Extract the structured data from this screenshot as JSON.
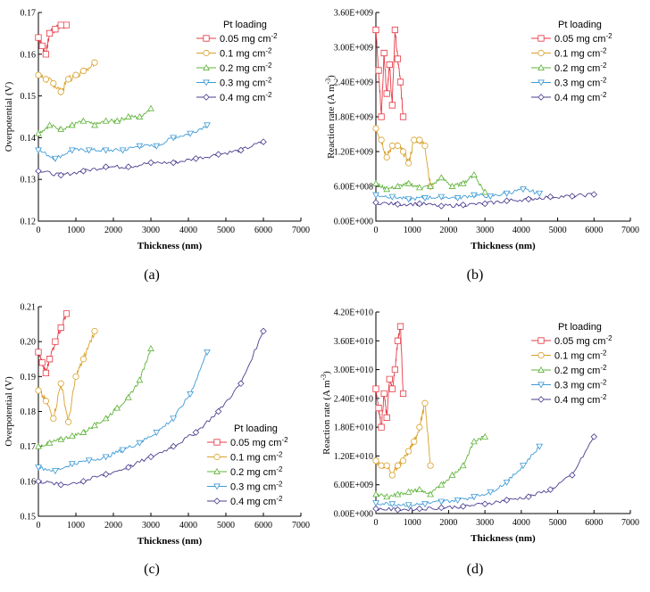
{
  "colors": [
    "#e83a45",
    "#d9a12a",
    "#5fb33a",
    "#3d9ad6",
    "#4a3d8f"
  ],
  "chart_data": [
    {
      "type": "line",
      "panel": "a",
      "caption": "(a)",
      "title": "",
      "xlabel": "Thickness (nm)",
      "ylabel": "Overpotential (V)",
      "xlim": [
        0,
        7000
      ],
      "ylim": [
        0.12,
        0.17
      ],
      "xticks": [
        "0",
        "1000",
        "2000",
        "3000",
        "4000",
        "5000",
        "6000",
        "7000"
      ],
      "yticks": [
        "0.12",
        "0.13",
        "0.14",
        "0.15",
        "0.16",
        "0.17"
      ],
      "legend_title": "Pt loading",
      "legend_position": "top-right",
      "series": [
        {
          "name": "0.05 mg cm",
          "sup": "-2",
          "marker": "square",
          "x": [
            0,
            100,
            200,
            300,
            450,
            600,
            750
          ],
          "y": [
            0.164,
            0.162,
            0.16,
            0.165,
            0.166,
            0.167,
            0.167
          ]
        },
        {
          "name": "0.1   mg cm",
          "sup": "-2",
          "marker": "circle",
          "x": [
            0,
            200,
            400,
            600,
            800,
            1000,
            1200,
            1500
          ],
          "y": [
            0.155,
            0.154,
            0.153,
            0.151,
            0.154,
            0.155,
            0.156,
            0.158
          ]
        },
        {
          "name": "0.2   mg cm",
          "sup": "-2",
          "marker": "triangle-up",
          "x": [
            0,
            300,
            600,
            900,
            1200,
            1500,
            1800,
            2100,
            2400,
            2700,
            3000
          ],
          "y": [
            0.141,
            0.143,
            0.142,
            0.143,
            0.144,
            0.143,
            0.144,
            0.144,
            0.145,
            0.145,
            0.147
          ]
        },
        {
          "name": "0.3   mg cm",
          "sup": "-2",
          "marker": "triangle-down",
          "x": [
            0,
            450,
            900,
            1350,
            1800,
            2250,
            2700,
            3150,
            3600,
            4050,
            4500
          ],
          "y": [
            0.137,
            0.135,
            0.137,
            0.137,
            0.137,
            0.137,
            0.138,
            0.138,
            0.14,
            0.141,
            0.143
          ]
        },
        {
          "name": "0.4   mg cm",
          "sup": "-2",
          "marker": "diamond",
          "x": [
            0,
            600,
            1200,
            1800,
            2400,
            3000,
            3600,
            4200,
            4800,
            5400,
            6000
          ],
          "y": [
            0.132,
            0.131,
            0.132,
            0.133,
            0.133,
            0.134,
            0.134,
            0.135,
            0.136,
            0.137,
            0.139
          ]
        }
      ]
    },
    {
      "type": "line",
      "panel": "b",
      "caption": "(b)",
      "title": "",
      "xlabel": "Thickness (nm)",
      "ylabel": "Reaction rate (A m",
      "ylabel_sup": "-3",
      "ylabel_tail": ")",
      "xlim": [
        0,
        7000
      ],
      "ylim": [
        0,
        3600000000.0
      ],
      "xticks": [
        "0",
        "1000",
        "2000",
        "3000",
        "4000",
        "5000",
        "6000",
        "7000"
      ],
      "yticks": [
        "0.00E+000",
        "6.00E+008",
        "1.20E+009",
        "1.80E+009",
        "2.40E+009",
        "3.00E+009",
        "3.60E+009"
      ],
      "legend_title": "Pt loading",
      "legend_position": "top-right",
      "series": [
        {
          "name": "0.05 mg cm",
          "sup": "-2",
          "marker": "square",
          "x": [
            0,
            75,
            150,
            225,
            300,
            375,
            450,
            525,
            600,
            675,
            750
          ],
          "y": [
            3300000000.0,
            2600000000.0,
            1800000000.0,
            2900000000.0,
            2200000000.0,
            2700000000.0,
            2000000000.0,
            3300000000.0,
            2800000000.0,
            2400000000.0,
            1800000000.0
          ]
        },
        {
          "name": "0.1   mg cm",
          "sup": "-2",
          "marker": "circle",
          "x": [
            0,
            150,
            300,
            450,
            600,
            750,
            900,
            1050,
            1200,
            1350,
            1500
          ],
          "y": [
            1600000000.0,
            1400000000.0,
            1100000000.0,
            1300000000.0,
            1300000000.0,
            1200000000.0,
            1000000000.0,
            1400000000.0,
            1400000000.0,
            1300000000.0,
            600000000.0
          ]
        },
        {
          "name": "0.2   mg cm",
          "sup": "-2",
          "marker": "triangle-up",
          "x": [
            0,
            300,
            600,
            900,
            1200,
            1500,
            1800,
            2100,
            2400,
            2700,
            3000
          ],
          "y": [
            650000000.0,
            550000000.0,
            600000000.0,
            650000000.0,
            580000000.0,
            600000000.0,
            750000000.0,
            600000000.0,
            650000000.0,
            800000000.0,
            500000000.0
          ]
        },
        {
          "name": "0.3   mg cm",
          "sup": "-2",
          "marker": "triangle-down",
          "x": [
            0,
            450,
            900,
            1350,
            1800,
            2250,
            2700,
            3150,
            3600,
            4050,
            4500
          ],
          "y": [
            450000000.0,
            420000000.0,
            380000000.0,
            400000000.0,
            420000000.0,
            400000000.0,
            450000000.0,
            430000000.0,
            480000000.0,
            550000000.0,
            480000000.0
          ]
        },
        {
          "name": "0.4   mg cm",
          "sup": "-2",
          "marker": "diamond",
          "x": [
            0,
            600,
            1200,
            1800,
            2400,
            3000,
            3600,
            4200,
            4800,
            5400,
            6000
          ],
          "y": [
            320000000.0,
            290000000.0,
            300000000.0,
            260000000.0,
            280000000.0,
            300000000.0,
            350000000.0,
            380000000.0,
            420000000.0,
            430000000.0,
            460000000.0
          ]
        }
      ]
    },
    {
      "type": "line",
      "panel": "c",
      "caption": "(c)",
      "title": "",
      "xlabel": "Thickness (nm)",
      "ylabel": "Overpotential (V)",
      "xlim": [
        0,
        7000
      ],
      "ylim": [
        0.15,
        0.21
      ],
      "xticks": [
        "0",
        "1000",
        "2000",
        "3000",
        "4000",
        "5000",
        "6000",
        "7000"
      ],
      "yticks": [
        "0.15",
        "0.16",
        "0.17",
        "0.18",
        "0.19",
        "0.20",
        "0.21"
      ],
      "legend_title": "Pt loading",
      "legend_position": "bottom-right",
      "series": [
        {
          "name": "0.05 mg cm",
          "sup": "-2",
          "marker": "square",
          "x": [
            0,
            100,
            200,
            300,
            450,
            600,
            750
          ],
          "y": [
            0.197,
            0.194,
            0.191,
            0.195,
            0.2,
            0.204,
            0.208
          ]
        },
        {
          "name": "0.1   mg cm",
          "sup": "-2",
          "marker": "circle",
          "x": [
            0,
            200,
            400,
            600,
            800,
            1000,
            1200,
            1500
          ],
          "y": [
            0.186,
            0.183,
            0.178,
            0.188,
            0.177,
            0.19,
            0.195,
            0.203
          ]
        },
        {
          "name": "0.2   mg cm",
          "sup": "-2",
          "marker": "triangle-up",
          "x": [
            0,
            300,
            600,
            900,
            1200,
            1500,
            1800,
            2100,
            2400,
            2700,
            3000
          ],
          "y": [
            0.17,
            0.171,
            0.172,
            0.173,
            0.174,
            0.176,
            0.178,
            0.181,
            0.184,
            0.189,
            0.198
          ]
        },
        {
          "name": "0.3   mg cm",
          "sup": "-2",
          "marker": "triangle-down",
          "x": [
            0,
            450,
            900,
            1350,
            1800,
            2250,
            2700,
            3150,
            3600,
            4050,
            4500
          ],
          "y": [
            0.164,
            0.163,
            0.165,
            0.166,
            0.167,
            0.169,
            0.171,
            0.174,
            0.178,
            0.185,
            0.197
          ]
        },
        {
          "name": "0.4   mg cm",
          "sup": "-2",
          "marker": "diamond",
          "x": [
            0,
            600,
            1200,
            1800,
            2400,
            3000,
            3600,
            4200,
            4800,
            5400,
            6000
          ],
          "y": [
            0.16,
            0.159,
            0.16,
            0.162,
            0.164,
            0.167,
            0.17,
            0.174,
            0.18,
            0.188,
            0.203
          ]
        }
      ]
    },
    {
      "type": "line",
      "panel": "d",
      "caption": "(d)",
      "title": "",
      "xlabel": "Thickness (nm)",
      "ylabel": "Reaction rate (A m",
      "ylabel_sup": "-3",
      "ylabel_tail": ")",
      "xlim": [
        0,
        7000
      ],
      "ylim": [
        0,
        42000000000.0
      ],
      "xticks": [
        "0",
        "1000",
        "2000",
        "3000",
        "4000",
        "5000",
        "6000",
        "7000"
      ],
      "yticks": [
        "0.00E+000",
        "6.00E+009",
        "1.20E+010",
        "1.80E+010",
        "2.40E+010",
        "3.00E+010",
        "3.60E+010",
        "4.20E+010"
      ],
      "legend_title": "Pt loading",
      "legend_position": "top-right",
      "series": [
        {
          "name": "0.05 mg cm",
          "sup": "-2",
          "marker": "square",
          "x": [
            0,
            75,
            150,
            225,
            300,
            375,
            450,
            525,
            600,
            675,
            750
          ],
          "y": [
            26000000000.0,
            22000000000.0,
            18000000000.0,
            25000000000.0,
            20000000000.0,
            28000000000.0,
            26000000000.0,
            30000000000.0,
            36000000000.0,
            39000000000.0,
            25000000000.0
          ]
        },
        {
          "name": "0.1   mg cm",
          "sup": "-2",
          "marker": "circle",
          "x": [
            0,
            150,
            300,
            450,
            600,
            750,
            900,
            1050,
            1200,
            1350,
            1500
          ],
          "y": [
            11000000000.0,
            10000000000.0,
            10000000000.0,
            8000000000.0,
            10000000000.0,
            11000000000.0,
            13000000000.0,
            15000000000.0,
            18000000000.0,
            23000000000.0,
            10000000000.0
          ]
        },
        {
          "name": "0.2   mg cm",
          "sup": "-2",
          "marker": "triangle-up",
          "x": [
            0,
            300,
            600,
            900,
            1200,
            1500,
            1800,
            2100,
            2400,
            2700,
            3000
          ],
          "y": [
            4000000000.0,
            3500000000.0,
            4000000000.0,
            4500000000.0,
            5000000000.0,
            4000000000.0,
            6000000000.0,
            8000000000.0,
            10000000000.0,
            15000000000.0,
            16000000000.0
          ]
        },
        {
          "name": "0.3   mg cm",
          "sup": "-2",
          "marker": "triangle-down",
          "x": [
            0,
            450,
            900,
            1350,
            1800,
            2250,
            2700,
            3150,
            3600,
            4050,
            4500
          ],
          "y": [
            2200000000.0,
            2000000000.0,
            1800000000.0,
            2000000000.0,
            2500000000.0,
            2800000000.0,
            3500000000.0,
            4500000000.0,
            6500000000.0,
            10000000000.0,
            14000000000.0
          ]
        },
        {
          "name": "0.4   mg cm",
          "sup": "-2",
          "marker": "diamond",
          "x": [
            0,
            600,
            1200,
            1800,
            2400,
            3000,
            3600,
            4200,
            4800,
            5400,
            6000
          ],
          "y": [
            1000000000.0,
            800000000.0,
            1000000000.0,
            1200000000.0,
            1500000000.0,
            2000000000.0,
            2800000000.0,
            3500000000.0,
            5000000000.0,
            8000000000.0,
            16000000000.0
          ]
        }
      ]
    }
  ]
}
